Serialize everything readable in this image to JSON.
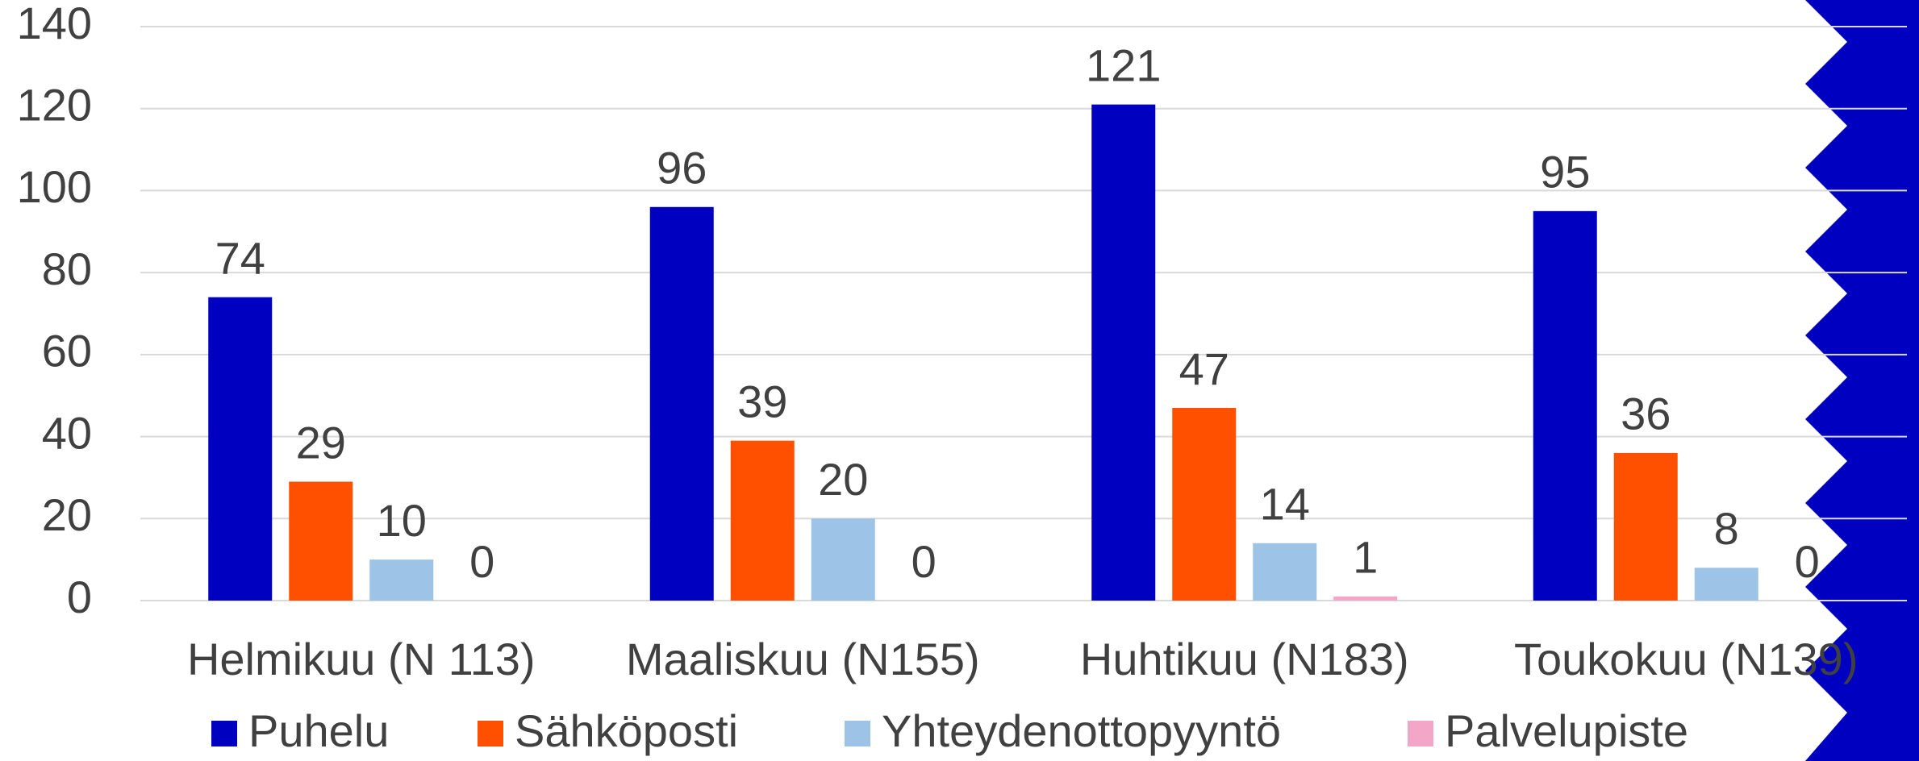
{
  "chart_data": {
    "type": "bar",
    "categories": [
      "Helmikuu (N 113)",
      "Maaliskuu (N155)",
      "Huhtikuu (N183)",
      "Toukokuu (N139)"
    ],
    "series": [
      {
        "name": "Puhelu",
        "color": "#0000c0",
        "values": [
          74,
          96,
          121,
          95
        ]
      },
      {
        "name": "Sähköposti",
        "color": "#ff5000",
        "values": [
          29,
          39,
          47,
          36
        ]
      },
      {
        "name": "Yhteydenottopyyntö",
        "color": "#9dc3e6",
        "values": [
          10,
          20,
          14,
          8
        ]
      },
      {
        "name": "Palvelupiste",
        "color": "#f4a6c8",
        "values": [
          0,
          0,
          1,
          0
        ]
      }
    ],
    "ylim": [
      0,
      140
    ],
    "yticks": [
      0,
      20,
      40,
      60,
      80,
      100,
      120,
      140
    ],
    "grid": true,
    "legend": "bottom"
  }
}
